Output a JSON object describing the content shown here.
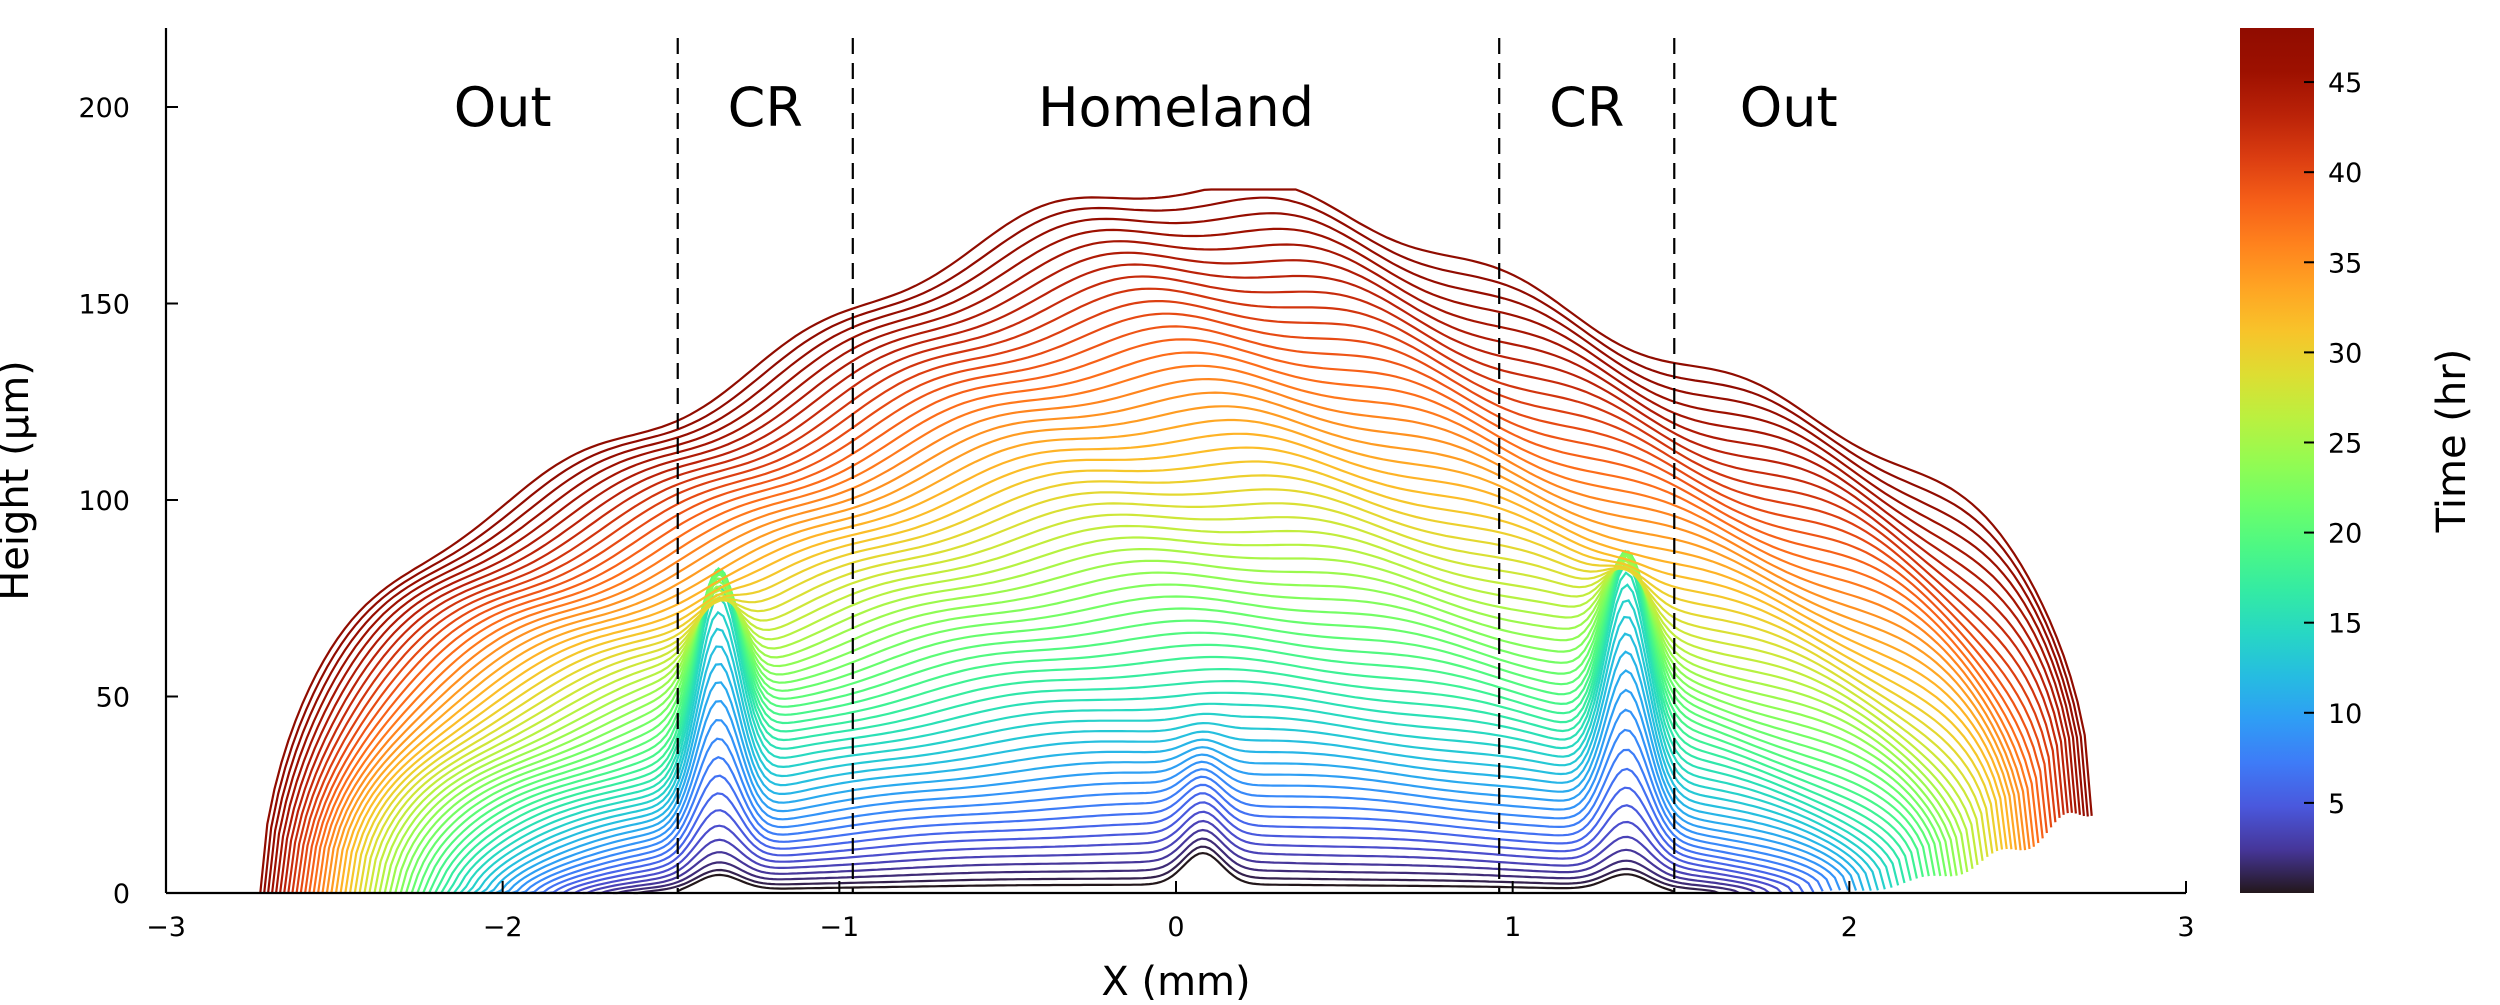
{
  "chart_data": {
    "type": "line",
    "xlabel": "X (mm)",
    "ylabel": "Height (µm)",
    "xlim": [
      -3,
      3
    ],
    "ylim": [
      0,
      220
    ],
    "x_ticks": [
      -3,
      -2,
      -1,
      0,
      1,
      2,
      3
    ],
    "x_tick_labels": [
      "−3",
      "−2",
      "−1",
      "0",
      "1",
      "2",
      "3"
    ],
    "y_ticks": [
      0,
      50,
      100,
      150,
      200
    ],
    "y_tick_labels": [
      "0",
      "50",
      "100",
      "150",
      "200"
    ],
    "grid": false,
    "legend": "none",
    "colormap": "turbo",
    "colorbar": {
      "label": "Time (hr)",
      "range": [
        0,
        48
      ],
      "ticks": [
        5,
        10,
        15,
        20,
        25,
        30,
        35,
        40,
        45
      ],
      "tick_labels": [
        "5",
        "10",
        "15",
        "20",
        "25",
        "30",
        "35",
        "40",
        "45"
      ]
    },
    "vertical_lines": [
      -1.48,
      -0.96,
      0.96,
      1.48
    ],
    "regions": [
      {
        "label": "Out",
        "x": -2.0
      },
      {
        "label": "CR",
        "x": -1.22
      },
      {
        "label": "Homeland",
        "x": 0.0
      },
      {
        "label": "CR",
        "x": 1.22
      },
      {
        "label": "Out",
        "x": 1.82
      }
    ],
    "time_range": [
      0,
      48
    ],
    "num_series": 60,
    "profile_model": {
      "edge_left_initial": -1.48,
      "edge_left_final": -2.72,
      "edge_right_initial": 1.48,
      "edge_right_final": 2.72,
      "max_height": 178
    }
  }
}
